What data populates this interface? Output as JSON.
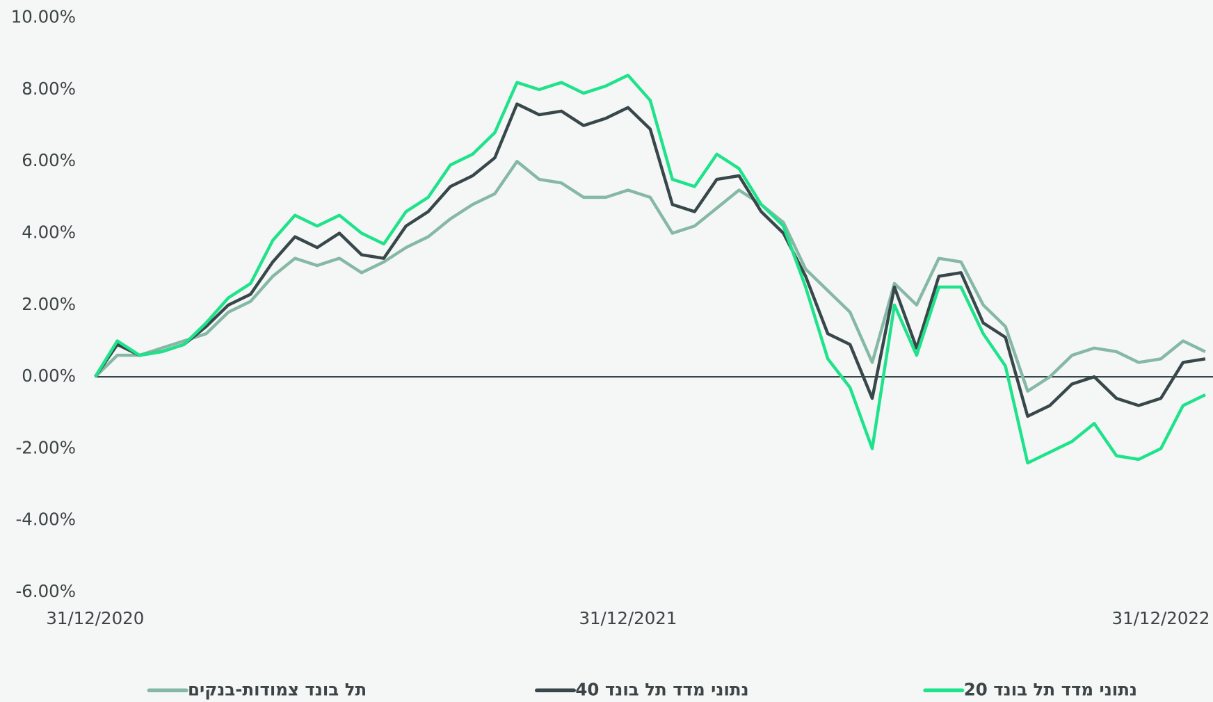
{
  "chart_data": {
    "type": "line",
    "categories": [
      "31/12/2020",
      null,
      null,
      null,
      null,
      null,
      null,
      null,
      null,
      null,
      null,
      null,
      null,
      null,
      null,
      null,
      null,
      null,
      null,
      null,
      null,
      null,
      null,
      null,
      "31/12/2021",
      null,
      null,
      null,
      null,
      null,
      null,
      null,
      null,
      null,
      null,
      null,
      null,
      null,
      null,
      null,
      null,
      null,
      null,
      null,
      null,
      null,
      null,
      null,
      "31/12/2022",
      null,
      null
    ],
    "ylim": [
      -6,
      10
    ],
    "yticks": [
      {
        "value": -6,
        "label": "-6.00%"
      },
      {
        "value": -4,
        "label": "-4.00%"
      },
      {
        "value": -2,
        "label": "-2.00%"
      },
      {
        "value": 0,
        "label": "0.00%"
      },
      {
        "value": 2,
        "label": "2.00%"
      },
      {
        "value": 4,
        "label": "4.00%"
      },
      {
        "value": 6,
        "label": "6.00%"
      },
      {
        "value": 8,
        "label": "8.00%"
      },
      {
        "value": 10,
        "label": "10.00%"
      }
    ],
    "zero_line": true,
    "series": [
      {
        "name": "נתוני מדד תל בונד 20",
        "color": "#1ee38a",
        "values": [
          0,
          1.0,
          0.6,
          0.7,
          0.9,
          1.5,
          2.2,
          2.6,
          3.8,
          4.5,
          4.2,
          4.5,
          4.0,
          3.7,
          4.6,
          5.0,
          5.9,
          6.2,
          6.8,
          8.2,
          8.0,
          8.2,
          7.9,
          8.1,
          8.4,
          7.7,
          5.5,
          5.3,
          6.2,
          5.8,
          4.8,
          4.2,
          2.5,
          0.5,
          -0.3,
          -2.0,
          2.0,
          0.6,
          2.5,
          2.5,
          1.2,
          0.3,
          -2.4,
          -2.1,
          -1.8,
          -1.3,
          -2.2,
          -2.3,
          -2.0,
          -0.8,
          -0.5
        ]
      },
      {
        "name": "נתוני מדד תל בונד 40",
        "color": "#37474a",
        "values": [
          0,
          0.9,
          0.6,
          0.7,
          0.9,
          1.4,
          2.0,
          2.3,
          3.2,
          3.9,
          3.6,
          4.0,
          3.4,
          3.3,
          4.2,
          4.6,
          5.3,
          5.6,
          6.1,
          7.6,
          7.3,
          7.4,
          7.0,
          7.2,
          7.5,
          6.9,
          4.8,
          4.6,
          5.5,
          5.6,
          4.6,
          4.0,
          2.8,
          1.2,
          0.9,
          -0.6,
          2.5,
          0.8,
          2.8,
          2.9,
          1.5,
          1.1,
          -1.1,
          -0.8,
          -0.2,
          0.0,
          -0.6,
          -0.8,
          -0.6,
          0.4,
          0.5
        ]
      },
      {
        "name": "תל בונד צמודות-בנקים",
        "color": "#86b8a6",
        "values": [
          0,
          0.6,
          0.6,
          0.8,
          1.0,
          1.2,
          1.8,
          2.1,
          2.8,
          3.3,
          3.1,
          3.3,
          2.9,
          3.2,
          3.6,
          3.9,
          4.4,
          4.8,
          5.1,
          6.0,
          5.5,
          5.4,
          5.0,
          5.0,
          5.2,
          5.0,
          4.0,
          4.2,
          4.7,
          5.2,
          4.8,
          4.3,
          3.0,
          2.4,
          1.8,
          0.4,
          2.6,
          2.0,
          3.3,
          3.2,
          2.0,
          1.4,
          -0.4,
          0.0,
          0.6,
          0.8,
          0.7,
          0.4,
          0.5,
          1.0,
          0.7
        ]
      }
    ]
  }
}
